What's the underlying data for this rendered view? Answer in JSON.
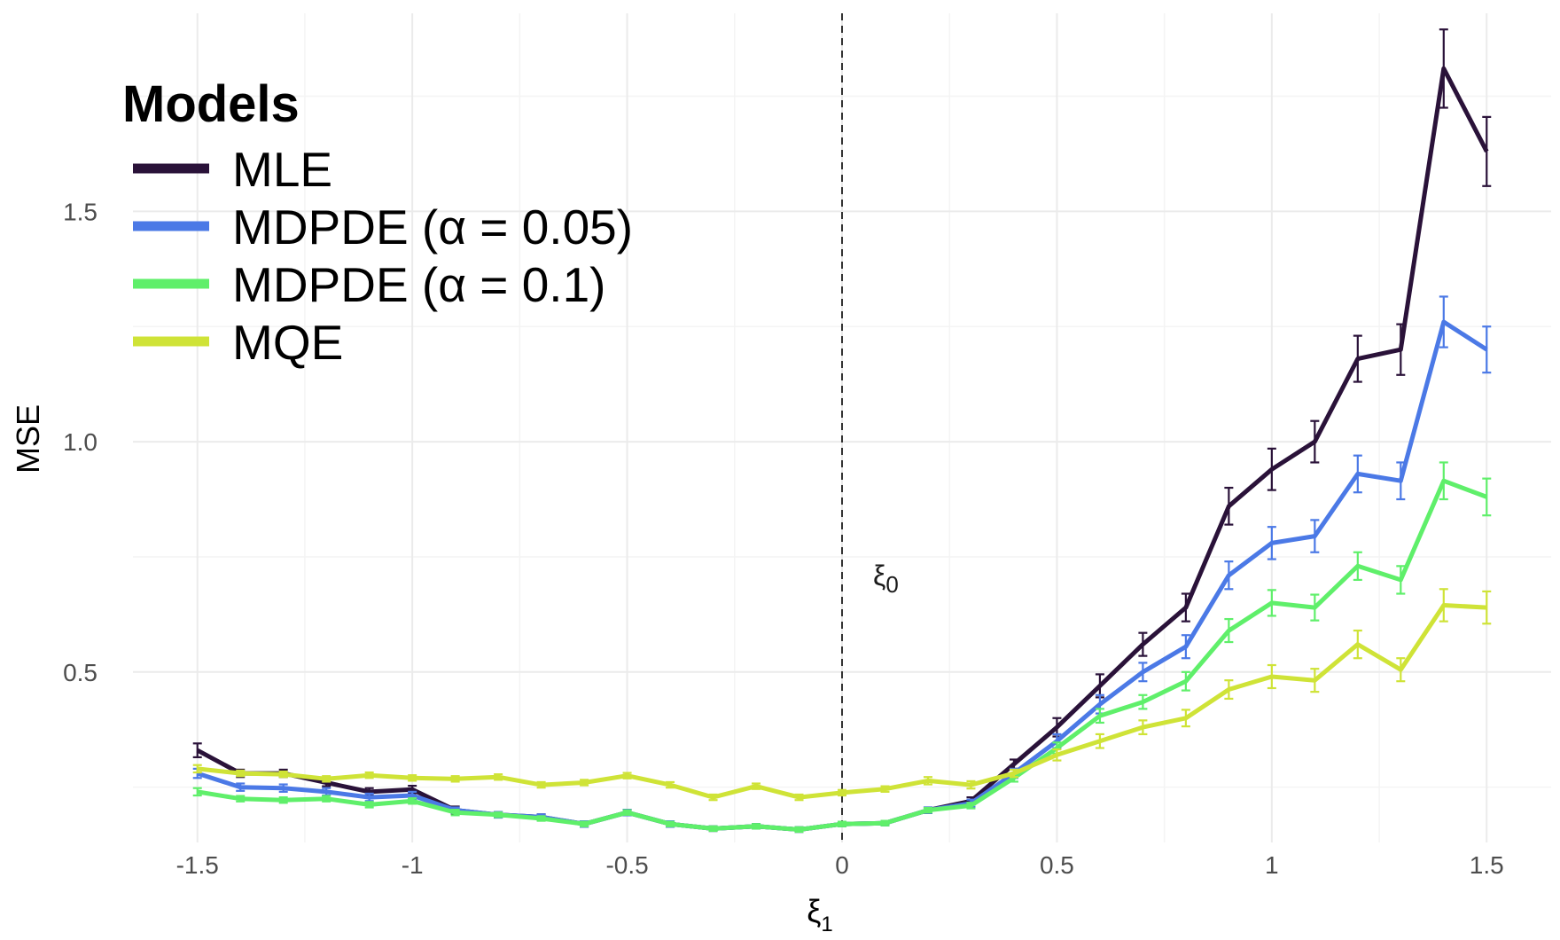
{
  "chart_data": {
    "type": "line",
    "xlabel": "ξ",
    "xlabel_sub": "1",
    "ylabel": "MSE",
    "xlim": [
      -1.65,
      1.65
    ],
    "ylim": [
      0.13,
      1.93
    ],
    "x_ticks": [
      -1.5,
      -1,
      -0.5,
      0,
      0.5,
      1,
      1.5
    ],
    "x_tick_labels": [
      "-1.5",
      "-1",
      "-0.5",
      "0",
      "0.5",
      "1",
      "1.5"
    ],
    "y_ticks": [
      0.5,
      1.0,
      1.5
    ],
    "y_tick_labels": [
      "0.5",
      "1.0",
      "1.5"
    ],
    "grid": true,
    "vline": {
      "x": 0,
      "style": "dashed",
      "label": "ξ",
      "label_sub": "0"
    },
    "legend": {
      "title": "Models",
      "position": "top-left"
    },
    "x": [
      -1.5,
      -1.4,
      -1.3,
      -1.2,
      -1.1,
      -1.0,
      -0.9,
      -0.8,
      -0.7,
      -0.6,
      -0.5,
      -0.4,
      -0.3,
      -0.2,
      -0.1,
      0.0,
      0.1,
      0.2,
      0.3,
      0.4,
      0.5,
      0.6,
      0.7,
      0.8,
      0.9,
      1.0,
      1.1,
      1.2,
      1.3,
      1.4,
      1.5
    ],
    "series": [
      {
        "name": "MLE",
        "color": "#2a1239",
        "values": [
          0.33,
          0.28,
          0.28,
          0.26,
          0.24,
          0.245,
          0.2,
          0.19,
          0.185,
          0.17,
          0.195,
          0.17,
          0.16,
          0.165,
          0.158,
          0.17,
          0.172,
          0.2,
          0.22,
          0.3,
          0.38,
          0.47,
          0.56,
          0.64,
          0.86,
          0.94,
          1.0,
          1.18,
          1.2,
          1.81,
          1.63
        ],
        "errors": [
          0.015,
          0.008,
          0.008,
          0.008,
          0.008,
          0.008,
          0.008,
          0.006,
          0.006,
          0.006,
          0.006,
          0.006,
          0.005,
          0.005,
          0.005,
          0.005,
          0.005,
          0.006,
          0.008,
          0.01,
          0.02,
          0.025,
          0.025,
          0.03,
          0.04,
          0.045,
          0.045,
          0.05,
          0.055,
          0.085,
          0.075
        ]
      },
      {
        "name": "MDPDE (α = 0.05)",
        "color": "#4b79e6",
        "values": [
          0.28,
          0.25,
          0.248,
          0.24,
          0.228,
          0.232,
          0.2,
          0.19,
          0.185,
          0.17,
          0.195,
          0.17,
          0.16,
          0.165,
          0.158,
          0.17,
          0.172,
          0.2,
          0.215,
          0.28,
          0.35,
          0.43,
          0.5,
          0.555,
          0.71,
          0.78,
          0.795,
          0.93,
          0.915,
          1.26,
          1.2
        ],
        "errors": [
          0.01,
          0.008,
          0.008,
          0.008,
          0.008,
          0.008,
          0.006,
          0.006,
          0.006,
          0.006,
          0.006,
          0.006,
          0.005,
          0.005,
          0.005,
          0.005,
          0.005,
          0.006,
          0.008,
          0.01,
          0.015,
          0.02,
          0.02,
          0.025,
          0.03,
          0.035,
          0.035,
          0.04,
          0.04,
          0.055,
          0.05
        ]
      },
      {
        "name": "MDPDE (α = 0.1)",
        "color": "#5fef6a",
        "values": [
          0.24,
          0.225,
          0.222,
          0.225,
          0.212,
          0.22,
          0.195,
          0.19,
          0.182,
          0.17,
          0.195,
          0.17,
          0.16,
          0.165,
          0.158,
          0.17,
          0.172,
          0.2,
          0.21,
          0.27,
          0.335,
          0.405,
          0.435,
          0.48,
          0.59,
          0.65,
          0.64,
          0.73,
          0.7,
          0.915,
          0.88
        ],
        "errors": [
          0.008,
          0.006,
          0.006,
          0.006,
          0.006,
          0.006,
          0.006,
          0.005,
          0.005,
          0.005,
          0.005,
          0.005,
          0.005,
          0.005,
          0.005,
          0.005,
          0.005,
          0.005,
          0.006,
          0.008,
          0.012,
          0.015,
          0.015,
          0.02,
          0.025,
          0.028,
          0.028,
          0.03,
          0.03,
          0.04,
          0.04
        ]
      },
      {
        "name": "MQE",
        "color": "#cfe337",
        "values": [
          0.29,
          0.28,
          0.278,
          0.268,
          0.276,
          0.27,
          0.268,
          0.272,
          0.255,
          0.26,
          0.275,
          0.255,
          0.228,
          0.252,
          0.228,
          0.238,
          0.246,
          0.264,
          0.255,
          0.28,
          0.32,
          0.35,
          0.38,
          0.4,
          0.462,
          0.49,
          0.482,
          0.56,
          0.505,
          0.645,
          0.64
        ],
        "errors": [
          0.008,
          0.006,
          0.006,
          0.006,
          0.006,
          0.006,
          0.006,
          0.006,
          0.006,
          0.006,
          0.006,
          0.006,
          0.006,
          0.006,
          0.006,
          0.006,
          0.006,
          0.008,
          0.008,
          0.008,
          0.012,
          0.015,
          0.015,
          0.018,
          0.02,
          0.025,
          0.025,
          0.03,
          0.025,
          0.035,
          0.035
        ]
      }
    ]
  }
}
